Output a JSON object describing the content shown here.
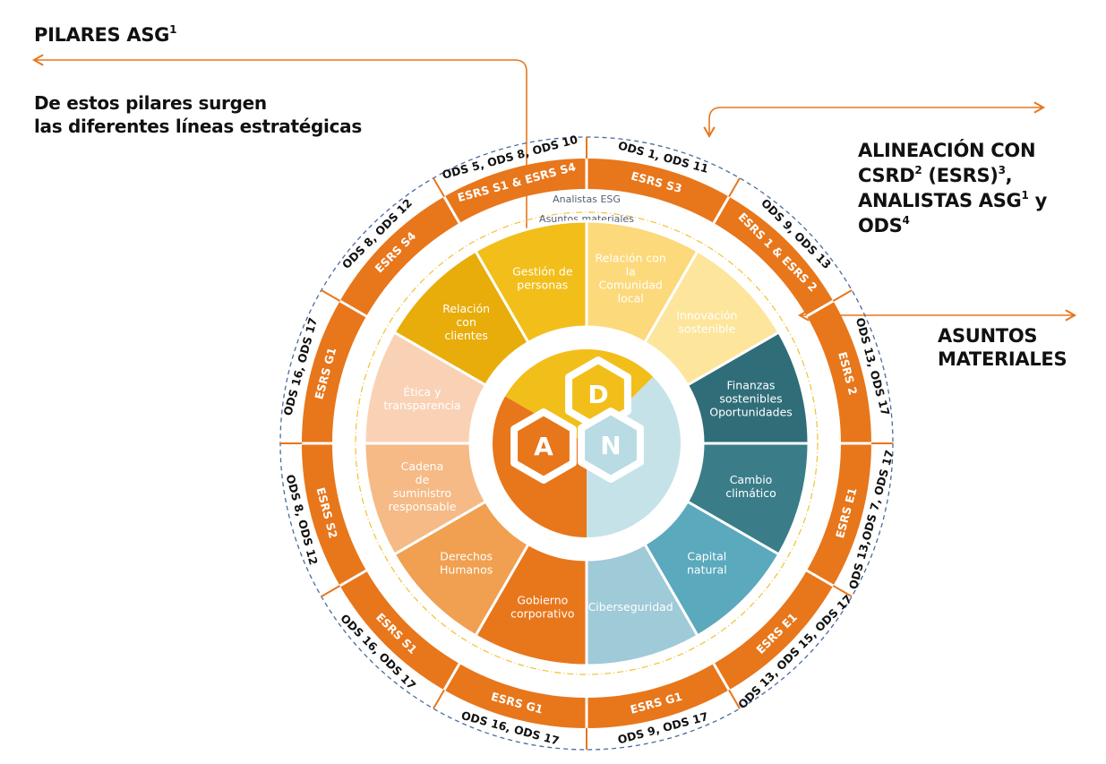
{
  "pillars_callout": {
    "title": [
      {
        "text": "PILARES ASG"
      },
      {
        "sup": "1"
      }
    ],
    "subtitle_lines": [
      "De estos pilares surgen",
      "las diferentes líneas estratégicas"
    ]
  },
  "alignment_callout": {
    "lines": [
      [
        {
          "text": "ALINEACIÓN CON"
        }
      ],
      [
        {
          "text": "CSRD"
        },
        {
          "sup": "2"
        },
        {
          "text": " (ESRS)"
        },
        {
          "sup": "3"
        },
        {
          "text": ","
        }
      ],
      [
        {
          "text": "ANALISTAS ASG"
        },
        {
          "sup": "1"
        },
        {
          "text": " y"
        }
      ],
      [
        {
          "text": "ODS"
        },
        {
          "sup": "4"
        }
      ]
    ]
  },
  "material_callout": {
    "lines": [
      "ASUNTOS",
      "MATERIALES"
    ]
  },
  "ring_labels": {
    "analysts": "Analistas ESG",
    "material": "Asuntos materiales"
  },
  "outer_ring": [
    {
      "esrs": "ESRS S3",
      "ods": "ODS 1, ODS 11"
    },
    {
      "esrs": "ESRS 1 & ESRS 2",
      "ods": "ODS 9, ODS 13"
    },
    {
      "esrs": "ESRS 2",
      "ods": "ODS 13, ODS 17"
    },
    {
      "esrs": "ESRS E1",
      "ods": "ODS 13,ODS 7, ODS 17"
    },
    {
      "esrs": "ESRS E1",
      "ods": "ODS 13, ODS 15, ODS 17"
    },
    {
      "esrs": "ESRS G1",
      "ods": "ODS 9, ODS 17"
    },
    {
      "esrs": "ESRS G1",
      "ods": "ODS 16, ODS 17"
    },
    {
      "esrs": "ESRS S1",
      "ods": "ODS 16, ODS 17"
    },
    {
      "esrs": "ESRS S2",
      "ods": "ODS 8, ODS 12"
    },
    {
      "esrs": "ESRS G1",
      "ods": "ODS 16, ODS 17"
    },
    {
      "esrs": "ESRS S4",
      "ods": "ODS 8, ODS 12"
    },
    {
      "esrs": "ESRS S1 & ESRS S4",
      "ods": "ODS 5, ODS 8, ODS 10"
    }
  ],
  "segments": [
    {
      "lines": [
        "Relación con",
        "la",
        "Comunidad",
        "local"
      ]
    },
    {
      "lines": [
        "Innovación",
        "sostenible"
      ]
    },
    {
      "lines": [
        "Finanzas",
        "sostenibles",
        "Oportunidades"
      ]
    },
    {
      "lines": [
        "Cambio",
        "climático"
      ]
    },
    {
      "lines": [
        "Capital",
        "natural"
      ]
    },
    {
      "lines": [
        "Ciberseguridad"
      ]
    },
    {
      "lines": [
        "Gobierno",
        "corporativo"
      ]
    },
    {
      "lines": [
        "Derechos",
        "Humanos"
      ]
    },
    {
      "lines": [
        "Cadena",
        "de",
        "suministro",
        "responsable"
      ]
    },
    {
      "lines": [
        "Ética y",
        "transparencia"
      ]
    },
    {
      "lines": [
        "Relación",
        "con",
        "clientes"
      ]
    },
    {
      "lines": [
        "Gestión de",
        "personas"
      ]
    }
  ],
  "hexagons": [
    {
      "letter": "D"
    },
    {
      "letter": "A"
    },
    {
      "letter": "N"
    }
  ]
}
